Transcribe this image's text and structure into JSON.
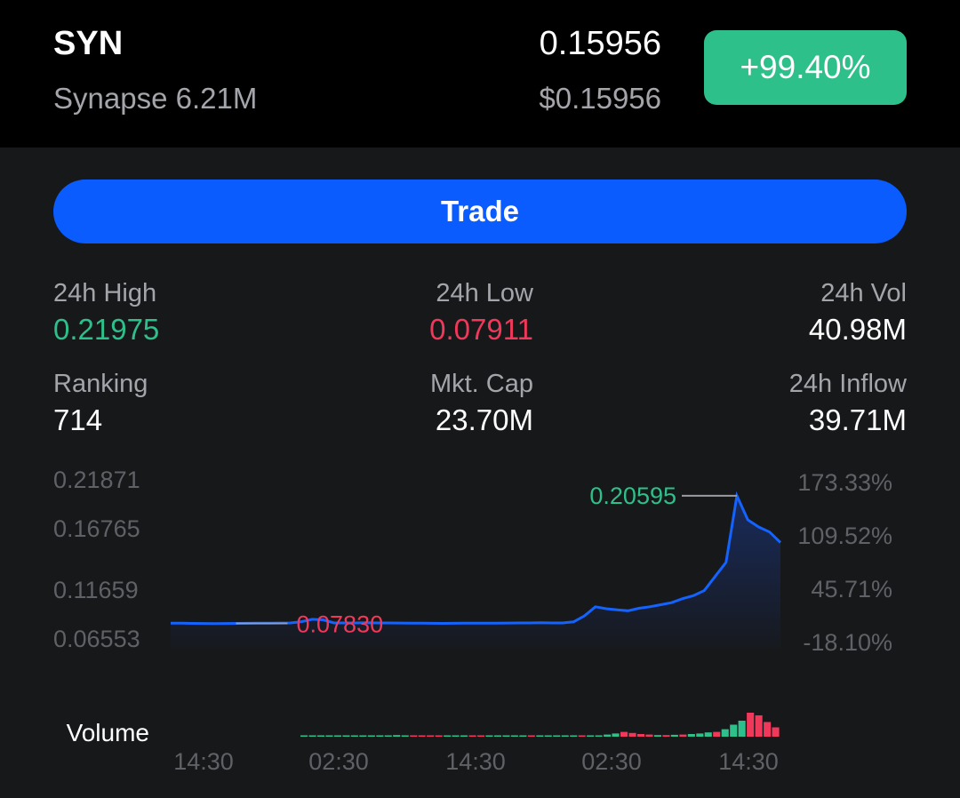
{
  "header": {
    "symbol": "SYN",
    "name_line": "Synapse 6.21M",
    "price": "0.15956",
    "price_usd": "$0.15956",
    "change": "+99.40%"
  },
  "trade_button": "Trade",
  "stats": {
    "high_label": "24h High",
    "high_value": "0.21975",
    "low_label": "24h Low",
    "low_value": "0.07911",
    "vol_label": "24h Vol",
    "vol_value": "40.98M",
    "rank_label": "Ranking",
    "rank_value": "714",
    "cap_label": "Mkt. Cap",
    "cap_value": "23.70M",
    "inflow_label": "24h Inflow",
    "inflow_value": "39.71M"
  },
  "colors": {
    "up": "#2ec08a",
    "down": "#f0385a",
    "accent": "#0a5cff"
  },
  "chart_data": {
    "type": "line",
    "y_ticks_left": [
      "0.21871",
      "0.16765",
      "0.11659",
      "0.06553"
    ],
    "y_ticks_right": [
      "173.33%",
      "109.52%",
      "45.71%",
      "-18.10%"
    ],
    "x_ticks": [
      "14:30",
      "02:30",
      "14:30",
      "02:30",
      "14:30"
    ],
    "max_marker": "0.20595",
    "min_marker": "0.07830",
    "volume_label": "Volume",
    "ylim": [
      0.065,
      0.219
    ],
    "price": [
      0.0798,
      0.0797,
      0.0795,
      0.0794,
      0.0793,
      0.0794,
      0.0795,
      0.0796,
      0.0797,
      0.0798,
      0.0799,
      0.08,
      0.0812,
      0.0836,
      0.083,
      0.08,
      0.08,
      0.08,
      0.0801,
      0.08,
      0.08,
      0.0799,
      0.0798,
      0.0797,
      0.0796,
      0.0795,
      0.0796,
      0.0797,
      0.0797,
      0.0798,
      0.0798,
      0.0799,
      0.08,
      0.08,
      0.0801,
      0.08,
      0.08,
      0.081,
      0.087,
      0.096,
      0.094,
      0.093,
      0.092,
      0.0945,
      0.096,
      0.098,
      0.1,
      0.104,
      0.107,
      0.112,
      0.126,
      0.14,
      0.2059,
      0.182,
      0.175,
      0.17,
      0.1596
    ],
    "volume": [
      0,
      0,
      0,
      0,
      0,
      0,
      0,
      0,
      0,
      0,
      0,
      0.06,
      0.05,
      0.04,
      0.03,
      0.02,
      0.02,
      0.02,
      0.01,
      0.01,
      0.01,
      0.01,
      0.01,
      0.01,
      0.01,
      0.01,
      0.01,
      0.02,
      0.02,
      0.03,
      0.03,
      0.02,
      0.02,
      0.02,
      0.03,
      0.04,
      0.08,
      0.12,
      0.18,
      0.14,
      0.1,
      0.08,
      0.06,
      0.06,
      0.07,
      0.08,
      0.1,
      0.12,
      0.16,
      0.18,
      0.28,
      0.45,
      0.6,
      0.9,
      0.8,
      0.55,
      0.35
    ],
    "volume_up": [
      true,
      true,
      true,
      true,
      true,
      true,
      true,
      true,
      true,
      true,
      true,
      true,
      true,
      false,
      false,
      false,
      false,
      true,
      true,
      true,
      false,
      false,
      true,
      true,
      true,
      true,
      true,
      false,
      true,
      true,
      true,
      true,
      true,
      false,
      true,
      true,
      true,
      true,
      false,
      false,
      false,
      false,
      true,
      false,
      true,
      false,
      true,
      true,
      true,
      false,
      true,
      true,
      true,
      false,
      false,
      false,
      false
    ]
  }
}
